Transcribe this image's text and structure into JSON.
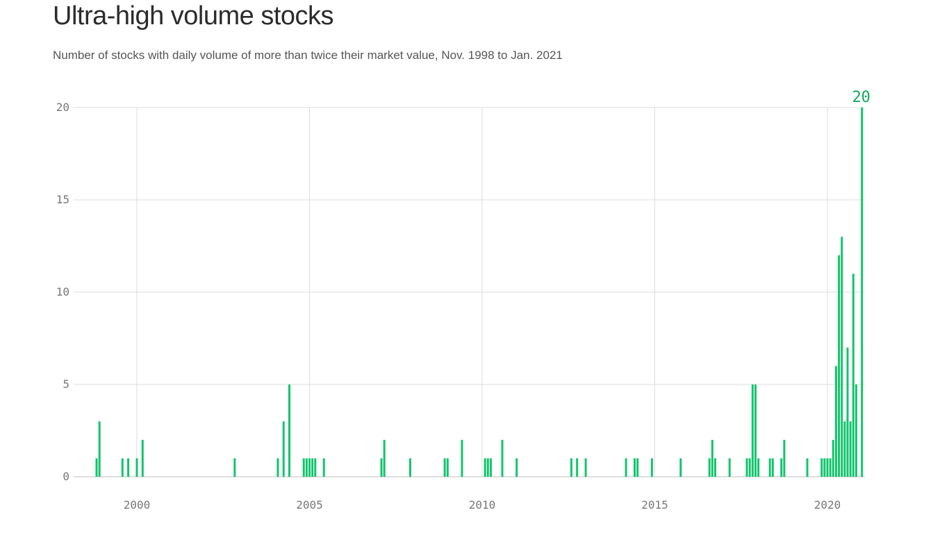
{
  "title": "Ultra-high volume stocks",
  "subtitle": "Number of stocks with daily volume of more than twice their market value, Nov. 1998 to Jan. 2021",
  "chart_data": {
    "type": "bar",
    "title": "Ultra-high volume stocks",
    "subtitle": "Number of stocks with daily volume of more than twice their market value, Nov. 1998 to Jan. 2021",
    "x_range": [
      "1998-11",
      "2021-01"
    ],
    "ylim": [
      0,
      20
    ],
    "y_ticks": [
      0,
      5,
      10,
      15,
      20
    ],
    "x_ticks": [
      2000,
      2005,
      2010,
      2015,
      2020
    ],
    "grid": true,
    "bar_color": "#12c46c",
    "annotation": {
      "x": "2021-01",
      "value": 20,
      "label": "20",
      "color": "#12a85e"
    },
    "points": [
      {
        "x": "1998-11",
        "value": 1
      },
      {
        "x": "1998-12",
        "value": 3
      },
      {
        "x": "1999-08",
        "value": 1
      },
      {
        "x": "1999-10",
        "value": 1
      },
      {
        "x": "2000-01",
        "value": 1
      },
      {
        "x": "2000-03",
        "value": 2
      },
      {
        "x": "2002-11",
        "value": 1
      },
      {
        "x": "2004-02",
        "value": 1
      },
      {
        "x": "2004-04",
        "value": 3
      },
      {
        "x": "2004-06",
        "value": 5
      },
      {
        "x": "2004-11",
        "value": 1
      },
      {
        "x": "2004-12",
        "value": 1
      },
      {
        "x": "2005-01",
        "value": 1
      },
      {
        "x": "2005-02",
        "value": 1
      },
      {
        "x": "2005-03",
        "value": 1
      },
      {
        "x": "2005-06",
        "value": 1
      },
      {
        "x": "2007-02",
        "value": 1
      },
      {
        "x": "2007-03",
        "value": 2
      },
      {
        "x": "2007-12",
        "value": 1
      },
      {
        "x": "2008-12",
        "value": 1
      },
      {
        "x": "2009-01",
        "value": 1
      },
      {
        "x": "2009-06",
        "value": 2
      },
      {
        "x": "2010-02",
        "value": 1
      },
      {
        "x": "2010-03",
        "value": 1
      },
      {
        "x": "2010-04",
        "value": 1
      },
      {
        "x": "2010-08",
        "value": 2
      },
      {
        "x": "2011-01",
        "value": 1
      },
      {
        "x": "2012-08",
        "value": 1
      },
      {
        "x": "2012-10",
        "value": 1
      },
      {
        "x": "2013-01",
        "value": 1
      },
      {
        "x": "2014-03",
        "value": 1
      },
      {
        "x": "2014-06",
        "value": 1
      },
      {
        "x": "2014-07",
        "value": 1
      },
      {
        "x": "2014-12",
        "value": 1
      },
      {
        "x": "2015-10",
        "value": 1
      },
      {
        "x": "2016-08",
        "value": 1
      },
      {
        "x": "2016-09",
        "value": 2
      },
      {
        "x": "2016-10",
        "value": 1
      },
      {
        "x": "2017-03",
        "value": 1
      },
      {
        "x": "2017-09",
        "value": 1
      },
      {
        "x": "2017-10",
        "value": 1
      },
      {
        "x": "2017-11",
        "value": 5
      },
      {
        "x": "2017-12",
        "value": 5
      },
      {
        "x": "2018-01",
        "value": 1
      },
      {
        "x": "2018-05",
        "value": 1
      },
      {
        "x": "2018-06",
        "value": 1
      },
      {
        "x": "2018-09",
        "value": 1
      },
      {
        "x": "2018-10",
        "value": 2
      },
      {
        "x": "2019-06",
        "value": 1
      },
      {
        "x": "2019-11",
        "value": 1
      },
      {
        "x": "2019-12",
        "value": 1
      },
      {
        "x": "2020-01",
        "value": 1
      },
      {
        "x": "2020-02",
        "value": 1
      },
      {
        "x": "2020-03",
        "value": 2
      },
      {
        "x": "2020-04",
        "value": 6
      },
      {
        "x": "2020-05",
        "value": 12
      },
      {
        "x": "2020-06",
        "value": 13
      },
      {
        "x": "2020-07",
        "value": 3
      },
      {
        "x": "2020-08",
        "value": 7
      },
      {
        "x": "2020-09",
        "value": 3
      },
      {
        "x": "2020-10",
        "value": 11
      },
      {
        "x": "2020-11",
        "value": 5
      },
      {
        "x": "2021-01",
        "value": 20
      }
    ]
  }
}
